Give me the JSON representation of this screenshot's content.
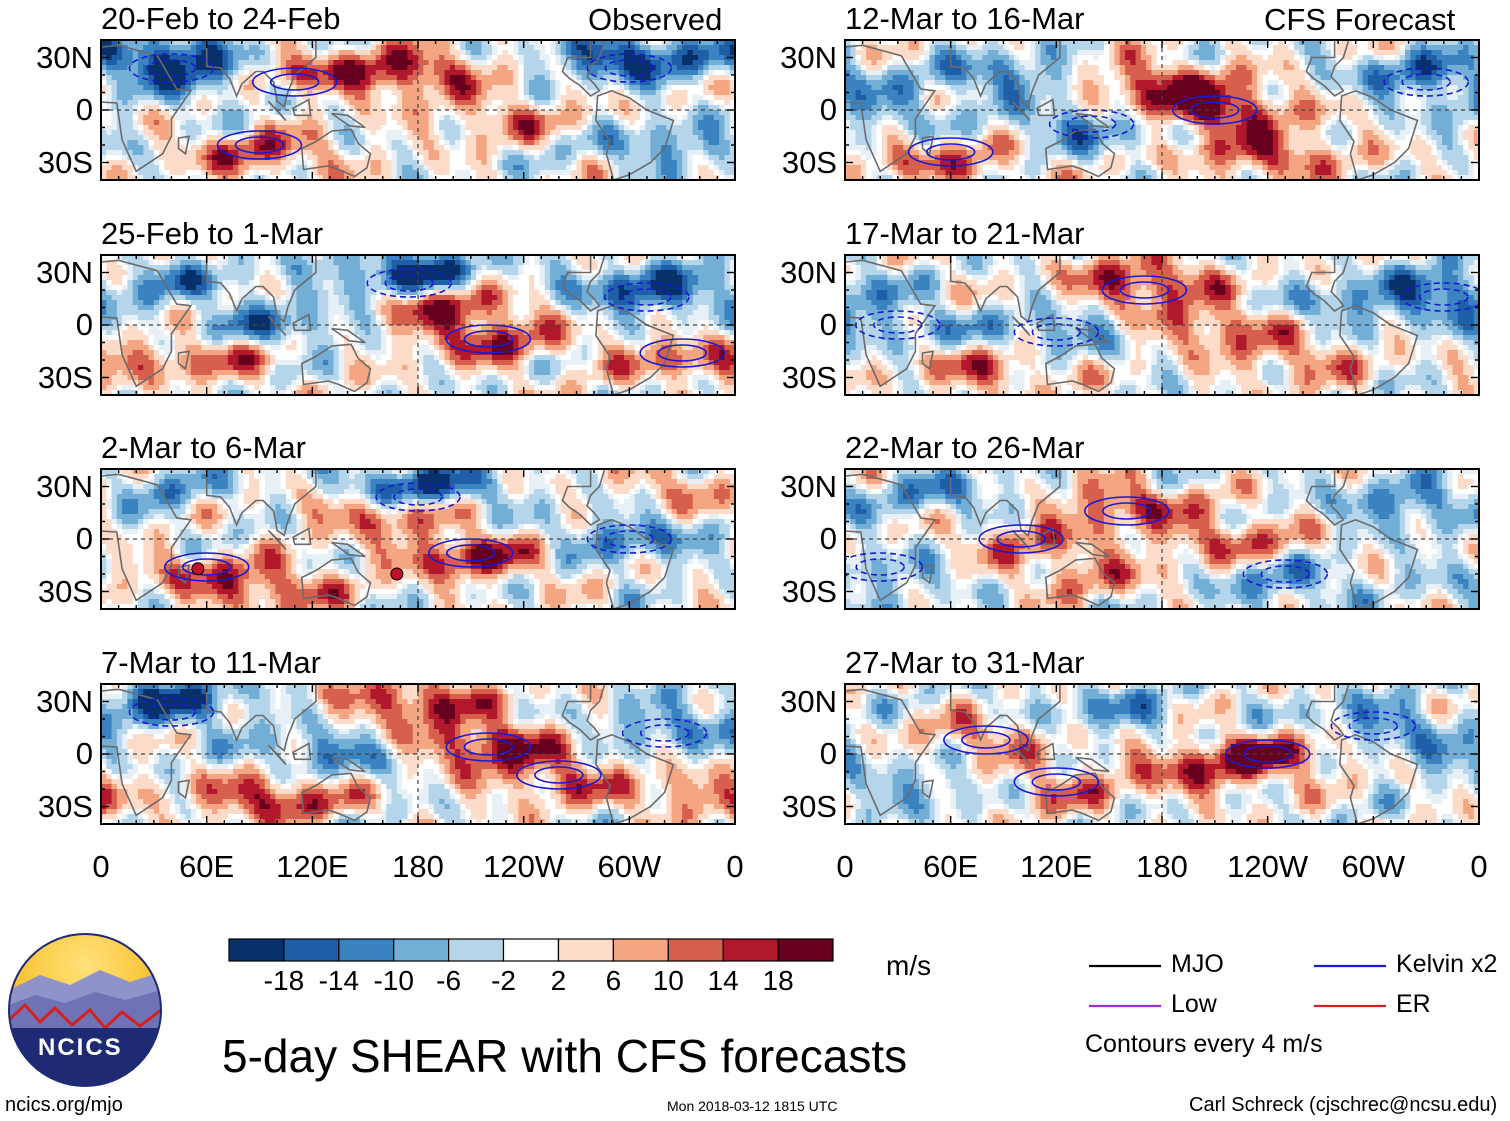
{
  "header": {
    "observed_label": "Observed",
    "forecast_label": "CFS Forecast"
  },
  "title": "5-day SHEAR with CFS forecasts",
  "footer": {
    "website": "ncics.org/mjo",
    "timestamp": "Mon 2018-03-12 1815 UTC",
    "author": "Carl Schreck (cjschrec@ncsu.edu)"
  },
  "logo": {
    "text": "NCICS"
  },
  "colorbar": {
    "unit": "m/s",
    "ticks": [
      "-18",
      "-14",
      "-10",
      "-6",
      "-2",
      "2",
      "6",
      "10",
      "14",
      "18"
    ],
    "colors": [
      "#08306b",
      "#1f5fa8",
      "#3b82c0",
      "#72aed6",
      "#b4d5ea",
      "#e7f0f7",
      "#ffffff",
      "#fcdcc9",
      "#f4a582",
      "#d6604d",
      "#b2182b",
      "#67001f"
    ]
  },
  "legend": {
    "items": [
      {
        "label": "MJO",
        "color": "#000000"
      },
      {
        "label": "Kelvin x2",
        "color": "#1a1ad6"
      },
      {
        "label": "Low",
        "color": "#9b30d9"
      },
      {
        "label": "ER",
        "color": "#d62020"
      }
    ],
    "note": "Contours every 4 m/s"
  },
  "chart_data": {
    "type": "heatmap",
    "title": "5-day SHEAR with CFS forecasts",
    "variable": "SHEAR",
    "unit": "m/s",
    "contour_interval": "Contours every 4 m/s",
    "x_ticks": [
      "0",
      "60E",
      "120E",
      "180",
      "120W",
      "60W",
      "0"
    ],
    "x_tick_values": [
      0,
      60,
      120,
      180,
      240,
      300,
      360
    ],
    "y_ticks": [
      "30N",
      "0",
      "30S"
    ],
    "y_tick_values": [
      30,
      0,
      -30
    ],
    "xlim": [
      0,
      360
    ],
    "ylim": [
      -40,
      40
    ],
    "panels": [
      {
        "title": "20-Feb to 24-Feb",
        "source": "Observed",
        "seed": 11,
        "features": [
          [
            40,
            30,
            -20
          ],
          [
            175,
            22,
            18
          ],
          [
            110,
            20,
            12
          ],
          [
            60,
            15,
            -10
          ],
          [
            300,
            30,
            -20
          ],
          [
            230,
            -5,
            10
          ],
          [
            90,
            -25,
            14
          ],
          [
            320,
            -20,
            -10
          ]
        ]
      },
      {
        "title": "12-Mar to 16-Mar",
        "source": "CFS Forecast",
        "seed": 12,
        "features": [
          [
            210,
            0,
            20
          ],
          [
            180,
            15,
            16
          ],
          [
            140,
            -10,
            -12
          ],
          [
            90,
            20,
            -12
          ],
          [
            330,
            20,
            -14
          ],
          [
            240,
            -25,
            16
          ],
          [
            60,
            -30,
            12
          ],
          [
            20,
            0,
            -8
          ]
        ]
      },
      {
        "title": "25-Feb to 1-Mar",
        "source": "Observed",
        "seed": 13,
        "features": [
          [
            175,
            30,
            -20
          ],
          [
            200,
            10,
            16
          ],
          [
            220,
            -10,
            14
          ],
          [
            60,
            -20,
            12
          ],
          [
            310,
            20,
            -18
          ],
          [
            100,
            0,
            -12
          ],
          [
            330,
            -20,
            12
          ],
          [
            40,
            25,
            -10
          ]
        ]
      },
      {
        "title": "17-Mar to 21-Mar",
        "source": "CFS Forecast",
        "seed": 14,
        "features": [
          [
            170,
            25,
            18
          ],
          [
            210,
            0,
            14
          ],
          [
            120,
            -5,
            -10
          ],
          [
            80,
            -25,
            12
          ],
          [
            340,
            20,
            -16
          ],
          [
            260,
            -20,
            10
          ],
          [
            30,
            0,
            -8
          ],
          [
            280,
            10,
            -8
          ]
        ]
      },
      {
        "title": "2-Mar to 6-Mar",
        "source": "Observed",
        "seed": 15,
        "features": [
          [
            180,
            30,
            -20
          ],
          [
            20,
            30,
            -16
          ],
          [
            210,
            -10,
            18
          ],
          [
            160,
            15,
            14
          ],
          [
            60,
            -20,
            10
          ],
          [
            350,
            30,
            16
          ],
          [
            300,
            0,
            -12
          ],
          [
            100,
            -30,
            12
          ]
        ]
      },
      {
        "title": "22-Mar to 26-Mar",
        "source": "CFS Forecast",
        "seed": 16,
        "features": [
          [
            160,
            20,
            14
          ],
          [
            220,
            0,
            12
          ],
          [
            100,
            0,
            10
          ],
          [
            60,
            25,
            -10
          ],
          [
            250,
            -25,
            -10
          ],
          [
            320,
            20,
            -12
          ],
          [
            20,
            -20,
            -8
          ],
          [
            140,
            -20,
            10
          ]
        ]
      },
      {
        "title": "7-Mar to 11-Mar",
        "source": "Observed",
        "seed": 17,
        "features": [
          [
            220,
            5,
            20
          ],
          [
            180,
            30,
            18
          ],
          [
            40,
            30,
            -18
          ],
          [
            100,
            -25,
            18
          ],
          [
            260,
            -15,
            12
          ],
          [
            130,
            0,
            -12
          ],
          [
            320,
            15,
            -10
          ],
          [
            340,
            -25,
            10
          ]
        ]
      },
      {
        "title": "27-Mar to 31-Mar",
        "source": "CFS Forecast",
        "seed": 18,
        "features": [
          [
            240,
            0,
            16
          ],
          [
            200,
            -10,
            12
          ],
          [
            80,
            10,
            10
          ],
          [
            150,
            25,
            -10
          ],
          [
            300,
            20,
            -10
          ],
          [
            50,
            -20,
            -8
          ],
          [
            120,
            -20,
            10
          ],
          [
            340,
            0,
            -8
          ]
        ]
      }
    ]
  }
}
